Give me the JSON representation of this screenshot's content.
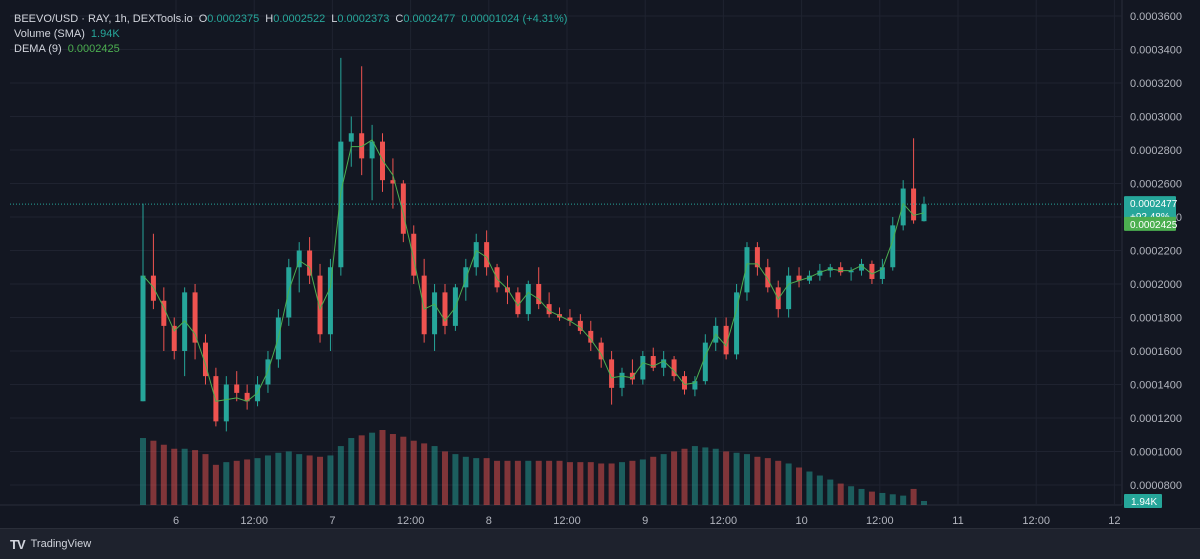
{
  "legend": {
    "symbol": "BEEVO/USD · RAY, 1h, DEXTools.io",
    "o_label": "O",
    "o_value": "0.0002375",
    "h_label": "H",
    "h_value": "0.0002522",
    "l_label": "L",
    "l_value": "0.0002373",
    "c_label": "C",
    "c_value": "0.0002477",
    "change": "0.00001024 (+4.31%)",
    "volume_label": "Volume (SMA)",
    "volume_value": "1.94K",
    "dema_label": "DEMA (9)",
    "dema_value": "0.0002425"
  },
  "badges": {
    "price": "0.0002477",
    "change_pct": "+92.48%",
    "dema": "0.0002425",
    "volume": "1.94K"
  },
  "footer": {
    "brand": "TradingView",
    "brand_icon": "TV"
  },
  "colors": {
    "up": "#26a69a",
    "down": "#ef5350",
    "dema": "#4caf50",
    "bg": "#131722"
  },
  "chart_data": {
    "type": "candlestick",
    "ylim": [
      6e-05,
      0.000365
    ],
    "y_ticks": [
      "0.0003600",
      "0.0003400",
      "0.0003200",
      "0.0003000",
      "0.0002800",
      "0.0002600",
      "0.0002400",
      "0.0002200",
      "0.0002000",
      "0.0001800",
      "0.0001600",
      "0.0001400",
      "0.0001200",
      "0.0001000",
      "0.0000800"
    ],
    "x_ticks": [
      "6",
      "12:00",
      "7",
      "12:00",
      "8",
      "12:00",
      "9",
      "12:00",
      "10",
      "12:00",
      "11",
      "12:00",
      "12"
    ],
    "last_price": 0.0002477,
    "last_dema": 0.0002425,
    "ohlc": [
      [
        0.00013,
        0.000248,
        0.00013,
        0.000205
      ],
      [
        0.000205,
        0.00023,
        0.000185,
        0.00019
      ],
      [
        0.00019,
        0.000198,
        0.00016,
        0.000175
      ],
      [
        0.000175,
        0.00018,
        0.000155,
        0.00016
      ],
      [
        0.00016,
        0.000198,
        0.000145,
        0.000195
      ],
      [
        0.000195,
        0.0002,
        0.000155,
        0.000165
      ],
      [
        0.000165,
        0.00017,
        0.00014,
        0.000145
      ],
      [
        0.000145,
        0.00015,
        0.000115,
        0.000118
      ],
      [
        0.000118,
        0.000145,
        0.000112,
        0.00014
      ],
      [
        0.00014,
        0.000148,
        0.00013,
        0.000135
      ],
      [
        0.000135,
        0.00014,
        0.000125,
        0.00013
      ],
      [
        0.00013,
        0.000145,
        0.000127,
        0.00014
      ],
      [
        0.00014,
        0.00016,
        0.000135,
        0.000155
      ],
      [
        0.000155,
        0.000185,
        0.00015,
        0.00018
      ],
      [
        0.00018,
        0.000215,
        0.000175,
        0.00021
      ],
      [
        0.00021,
        0.000225,
        0.000195,
        0.00022
      ],
      [
        0.00022,
        0.000228,
        0.0002,
        0.000205
      ],
      [
        0.000205,
        0.000212,
        0.000165,
        0.00017
      ],
      [
        0.00017,
        0.000215,
        0.00016,
        0.00021
      ],
      [
        0.00021,
        0.000335,
        0.000205,
        0.000285
      ],
      [
        0.000285,
        0.0003,
        0.00027,
        0.00029
      ],
      [
        0.00029,
        0.00033,
        0.000265,
        0.000275
      ],
      [
        0.000275,
        0.000295,
        0.00025,
        0.000285
      ],
      [
        0.000285,
        0.00029,
        0.000255,
        0.000262
      ],
      [
        0.000262,
        0.000275,
        0.000245,
        0.00026
      ],
      [
        0.00026,
        0.000262,
        0.000225,
        0.00023
      ],
      [
        0.00023,
        0.000235,
        0.0002,
        0.000205
      ],
      [
        0.000205,
        0.000215,
        0.000165,
        0.00017
      ],
      [
        0.00017,
        0.0002,
        0.00016,
        0.000195
      ],
      [
        0.000195,
        0.0002,
        0.00017,
        0.000175
      ],
      [
        0.000175,
        0.0002,
        0.000172,
        0.000198
      ],
      [
        0.000198,
        0.000215,
        0.00019,
        0.00021
      ],
      [
        0.00021,
        0.00023,
        0.000205,
        0.000225
      ],
      [
        0.000225,
        0.000232,
        0.000205,
        0.00021
      ],
      [
        0.00021,
        0.000212,
        0.000195,
        0.000198
      ],
      [
        0.000198,
        0.000205,
        0.000188,
        0.000195
      ],
      [
        0.000195,
        0.000198,
        0.00018,
        0.000182
      ],
      [
        0.000182,
        0.000202,
        0.000178,
        0.0002
      ],
      [
        0.0002,
        0.00021,
        0.000185,
        0.000188
      ],
      [
        0.000188,
        0.000195,
        0.00018,
        0.000182
      ],
      [
        0.000182,
        0.000186,
        0.000178,
        0.00018
      ],
      [
        0.00018,
        0.000185,
        0.000175,
        0.000178
      ],
      [
        0.000178,
        0.000182,
        0.00017,
        0.000172
      ],
      [
        0.000172,
        0.000178,
        0.00016,
        0.000165
      ],
      [
        0.000165,
        0.000168,
        0.00015,
        0.000155
      ],
      [
        0.000155,
        0.00016,
        0.000128,
        0.000138
      ],
      [
        0.000138,
        0.00015,
        0.000133,
        0.000147
      ],
      [
        0.000147,
        0.000155,
        0.00014,
        0.000143
      ],
      [
        0.000143,
        0.00016,
        0.00014,
        0.000157
      ],
      [
        0.000157,
        0.000162,
        0.000148,
        0.00015
      ],
      [
        0.00015,
        0.00016,
        0.000145,
        0.000155
      ],
      [
        0.000155,
        0.000157,
        0.000142,
        0.000145
      ],
      [
        0.000145,
        0.000148,
        0.000134,
        0.000137
      ],
      [
        0.000137,
        0.000145,
        0.000133,
        0.000142
      ],
      [
        0.000142,
        0.00017,
        0.00014,
        0.000165
      ],
      [
        0.000165,
        0.00018,
        0.00016,
        0.000175
      ],
      [
        0.000175,
        0.00018,
        0.000155,
        0.000158
      ],
      [
        0.000158,
        0.0002,
        0.000155,
        0.000195
      ],
      [
        0.000195,
        0.000225,
        0.00019,
        0.000222
      ],
      [
        0.000222,
        0.000225,
        0.000205,
        0.00021
      ],
      [
        0.00021,
        0.000215,
        0.000195,
        0.000198
      ],
      [
        0.000198,
        0.000202,
        0.00018,
        0.000185
      ],
      [
        0.000185,
        0.00021,
        0.00018,
        0.000205
      ],
      [
        0.000205,
        0.00021,
        0.000198,
        0.000202
      ],
      [
        0.000202,
        0.000208,
        0.0002,
        0.000205
      ],
      [
        0.000205,
        0.000212,
        0.000202,
        0.000208
      ],
      [
        0.000208,
        0.000212,
        0.000204,
        0.00021
      ],
      [
        0.00021,
        0.000213,
        0.000205,
        0.000207
      ],
      [
        0.000207,
        0.00021,
        0.000202,
        0.000208
      ],
      [
        0.000208,
        0.000215,
        0.000205,
        0.000212
      ],
      [
        0.000212,
        0.000214,
        0.0002,
        0.000203
      ],
      [
        0.000203,
        0.000215,
        0.0002,
        0.00021
      ],
      [
        0.00021,
        0.00024,
        0.000208,
        0.000235
      ],
      [
        0.000235,
        0.000262,
        0.000232,
        0.000257
      ],
      [
        0.000257,
        0.000287,
        0.000236,
        0.000238
      ],
      [
        0.0002375,
        0.0002522,
        0.0002373,
        0.0002477
      ]
    ],
    "dema": [
      0.000205,
      0.000198,
      0.000186,
      0.000172,
      0.000178,
      0.00017,
      0.000152,
      0.00013,
      0.000131,
      0.000132,
      0.00013,
      0.000135,
      0.000148,
      0.000168,
      0.000196,
      0.000214,
      0.00021,
      0.000185,
      0.000198,
      0.000255,
      0.000282,
      0.000282,
      0.000286,
      0.000274,
      0.000265,
      0.000242,
      0.000215,
      0.000185,
      0.000188,
      0.000178,
      0.000186,
      0.000203,
      0.00022,
      0.000216,
      0.000203,
      0.000197,
      0.000187,
      0.000195,
      0.000191,
      0.000184,
      0.000181,
      0.000178,
      0.000174,
      0.000167,
      0.000158,
      0.000144,
      0.000145,
      0.000144,
      0.000153,
      0.000151,
      0.000154,
      0.000148,
      0.00014,
      0.000141,
      0.000157,
      0.00017,
      0.000163,
      0.000185,
      0.000212,
      0.000212,
      0.000203,
      0.000191,
      0.0002,
      0.000202,
      0.000204,
      0.000207,
      0.000209,
      0.000208,
      0.000208,
      0.000211,
      0.000206,
      0.000209,
      0.000226,
      0.000248,
      0.000241,
      0.0002425
    ],
    "volume": [
      1.0,
      0.96,
      0.9,
      0.84,
      0.84,
      0.82,
      0.76,
      0.6,
      0.64,
      0.66,
      0.68,
      0.7,
      0.74,
      0.78,
      0.8,
      0.76,
      0.74,
      0.72,
      0.74,
      0.88,
      1.0,
      1.04,
      1.08,
      1.12,
      1.06,
      1.02,
      0.96,
      0.92,
      0.88,
      0.8,
      0.76,
      0.72,
      0.7,
      0.7,
      0.66,
      0.66,
      0.66,
      0.66,
      0.66,
      0.66,
      0.66,
      0.64,
      0.64,
      0.64,
      0.62,
      0.62,
      0.64,
      0.66,
      0.68,
      0.72,
      0.76,
      0.8,
      0.84,
      0.88,
      0.86,
      0.84,
      0.8,
      0.78,
      0.76,
      0.72,
      0.7,
      0.66,
      0.62,
      0.56,
      0.5,
      0.44,
      0.38,
      0.32,
      0.28,
      0.24,
      0.2,
      0.18,
      0.16,
      0.14,
      0.24,
      0.06
    ]
  }
}
